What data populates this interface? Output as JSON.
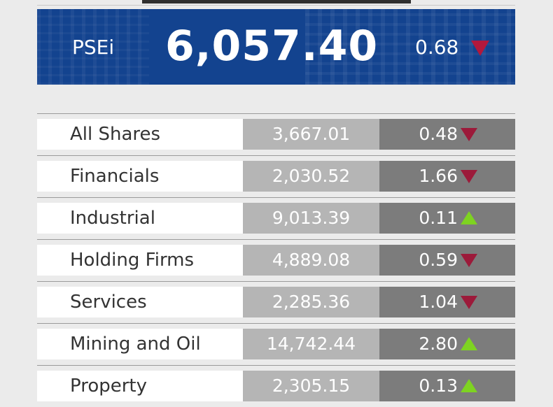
{
  "header": {
    "index_name": "PSEi",
    "index_value": "6,057.40",
    "index_change": "0.68",
    "index_direction": "down"
  },
  "sectors": [
    {
      "name": "All Shares",
      "value": "3,667.01",
      "change": "0.48",
      "direction": "down"
    },
    {
      "name": "Financials",
      "value": "2,030.52",
      "change": "1.66",
      "direction": "down"
    },
    {
      "name": "Industrial",
      "value": "9,013.39",
      "change": "0.11",
      "direction": "up"
    },
    {
      "name": "Holding Firms",
      "value": "4,889.08",
      "change": "0.59",
      "direction": "down"
    },
    {
      "name": "Services",
      "value": "2,285.36",
      "change": "1.04",
      "direction": "down"
    },
    {
      "name": "Mining and Oil",
      "value": "14,742.44",
      "change": "2.80",
      "direction": "up"
    },
    {
      "name": "Property",
      "value": "2,305.15",
      "change": "0.13",
      "direction": "up"
    }
  ],
  "colors": {
    "banner": "#13438f",
    "down_arrow": "#9c1a3a",
    "up_arrow": "#7ed321"
  }
}
